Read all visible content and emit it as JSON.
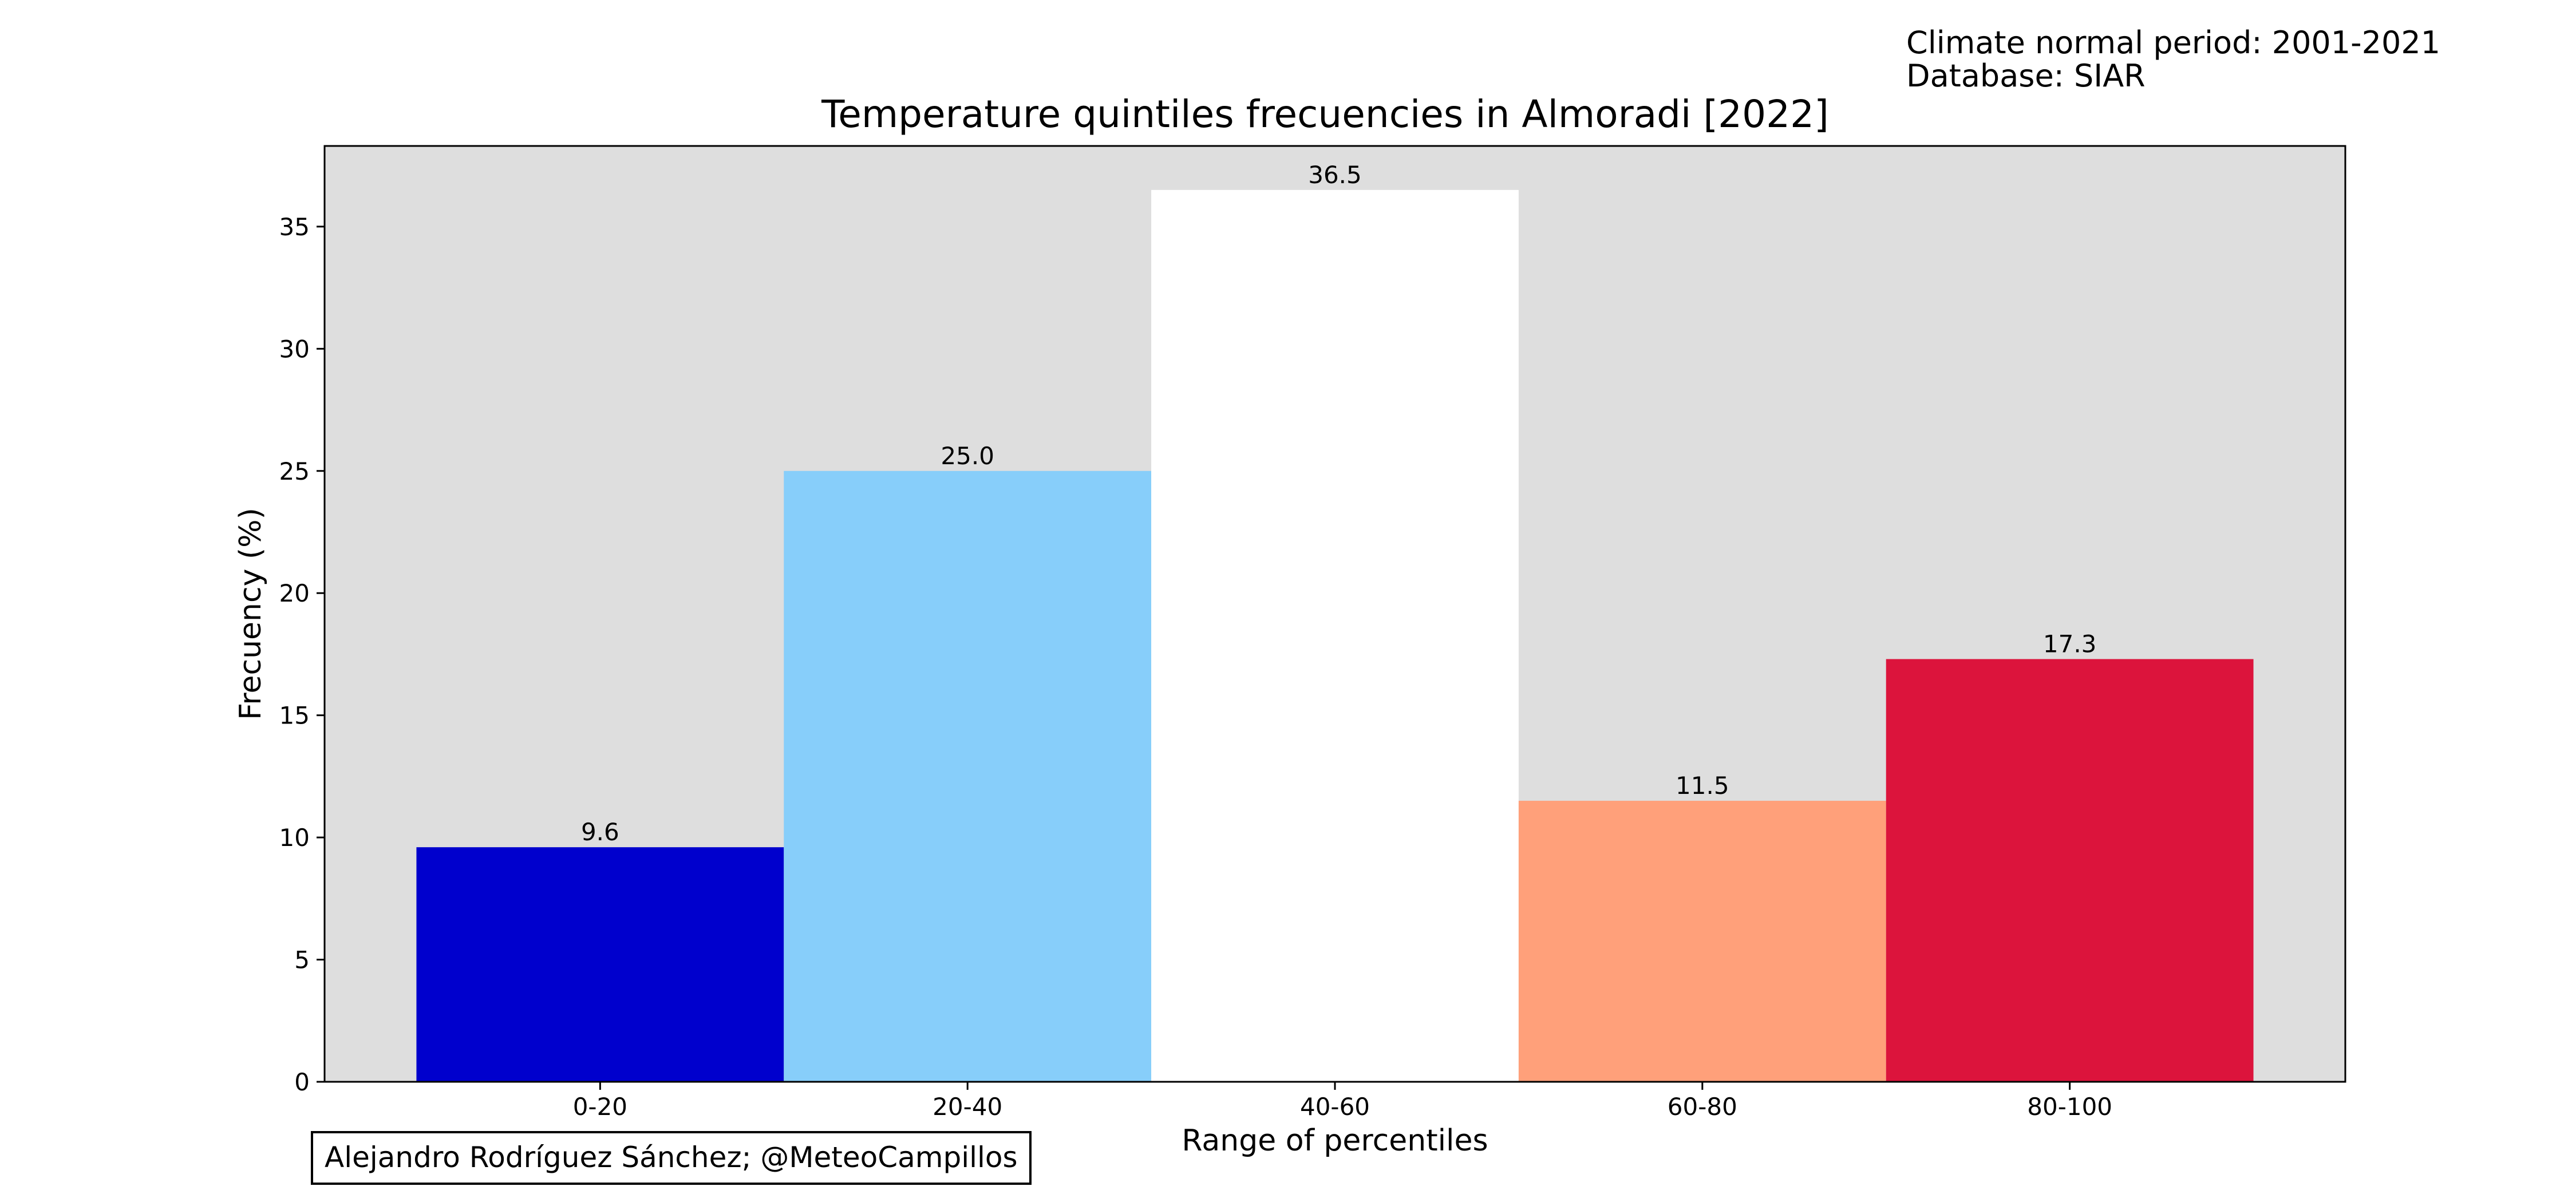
{
  "header_notes": {
    "line1": "Climate normal period: 2001-2021",
    "line2": "Database: SIAR"
  },
  "credit": "Alejandro Rodríguez Sánchez; @MeteoCampillos",
  "chart_data": {
    "type": "bar",
    "title": "Temperature quintiles frecuencies in Almoradi [2022]",
    "xlabel": "Range of percentiles",
    "ylabel": "Frecuency (%)",
    "categories": [
      "0-20",
      "20-40",
      "40-60",
      "60-80",
      "80-100"
    ],
    "values": [
      9.6,
      25.0,
      36.5,
      11.5,
      17.3
    ],
    "value_labels": [
      "9.6",
      "25.0",
      "36.5",
      "11.5",
      "17.3"
    ],
    "bar_colors": [
      "#0000cd",
      "#87cefa",
      "#ffffff",
      "#ffa07a",
      "#dc143c"
    ],
    "ylim": [
      0,
      38.3
    ],
    "yticks": [
      0,
      5,
      10,
      15,
      20,
      25,
      30,
      35
    ],
    "grid": false,
    "plot_background": "#dedede"
  }
}
